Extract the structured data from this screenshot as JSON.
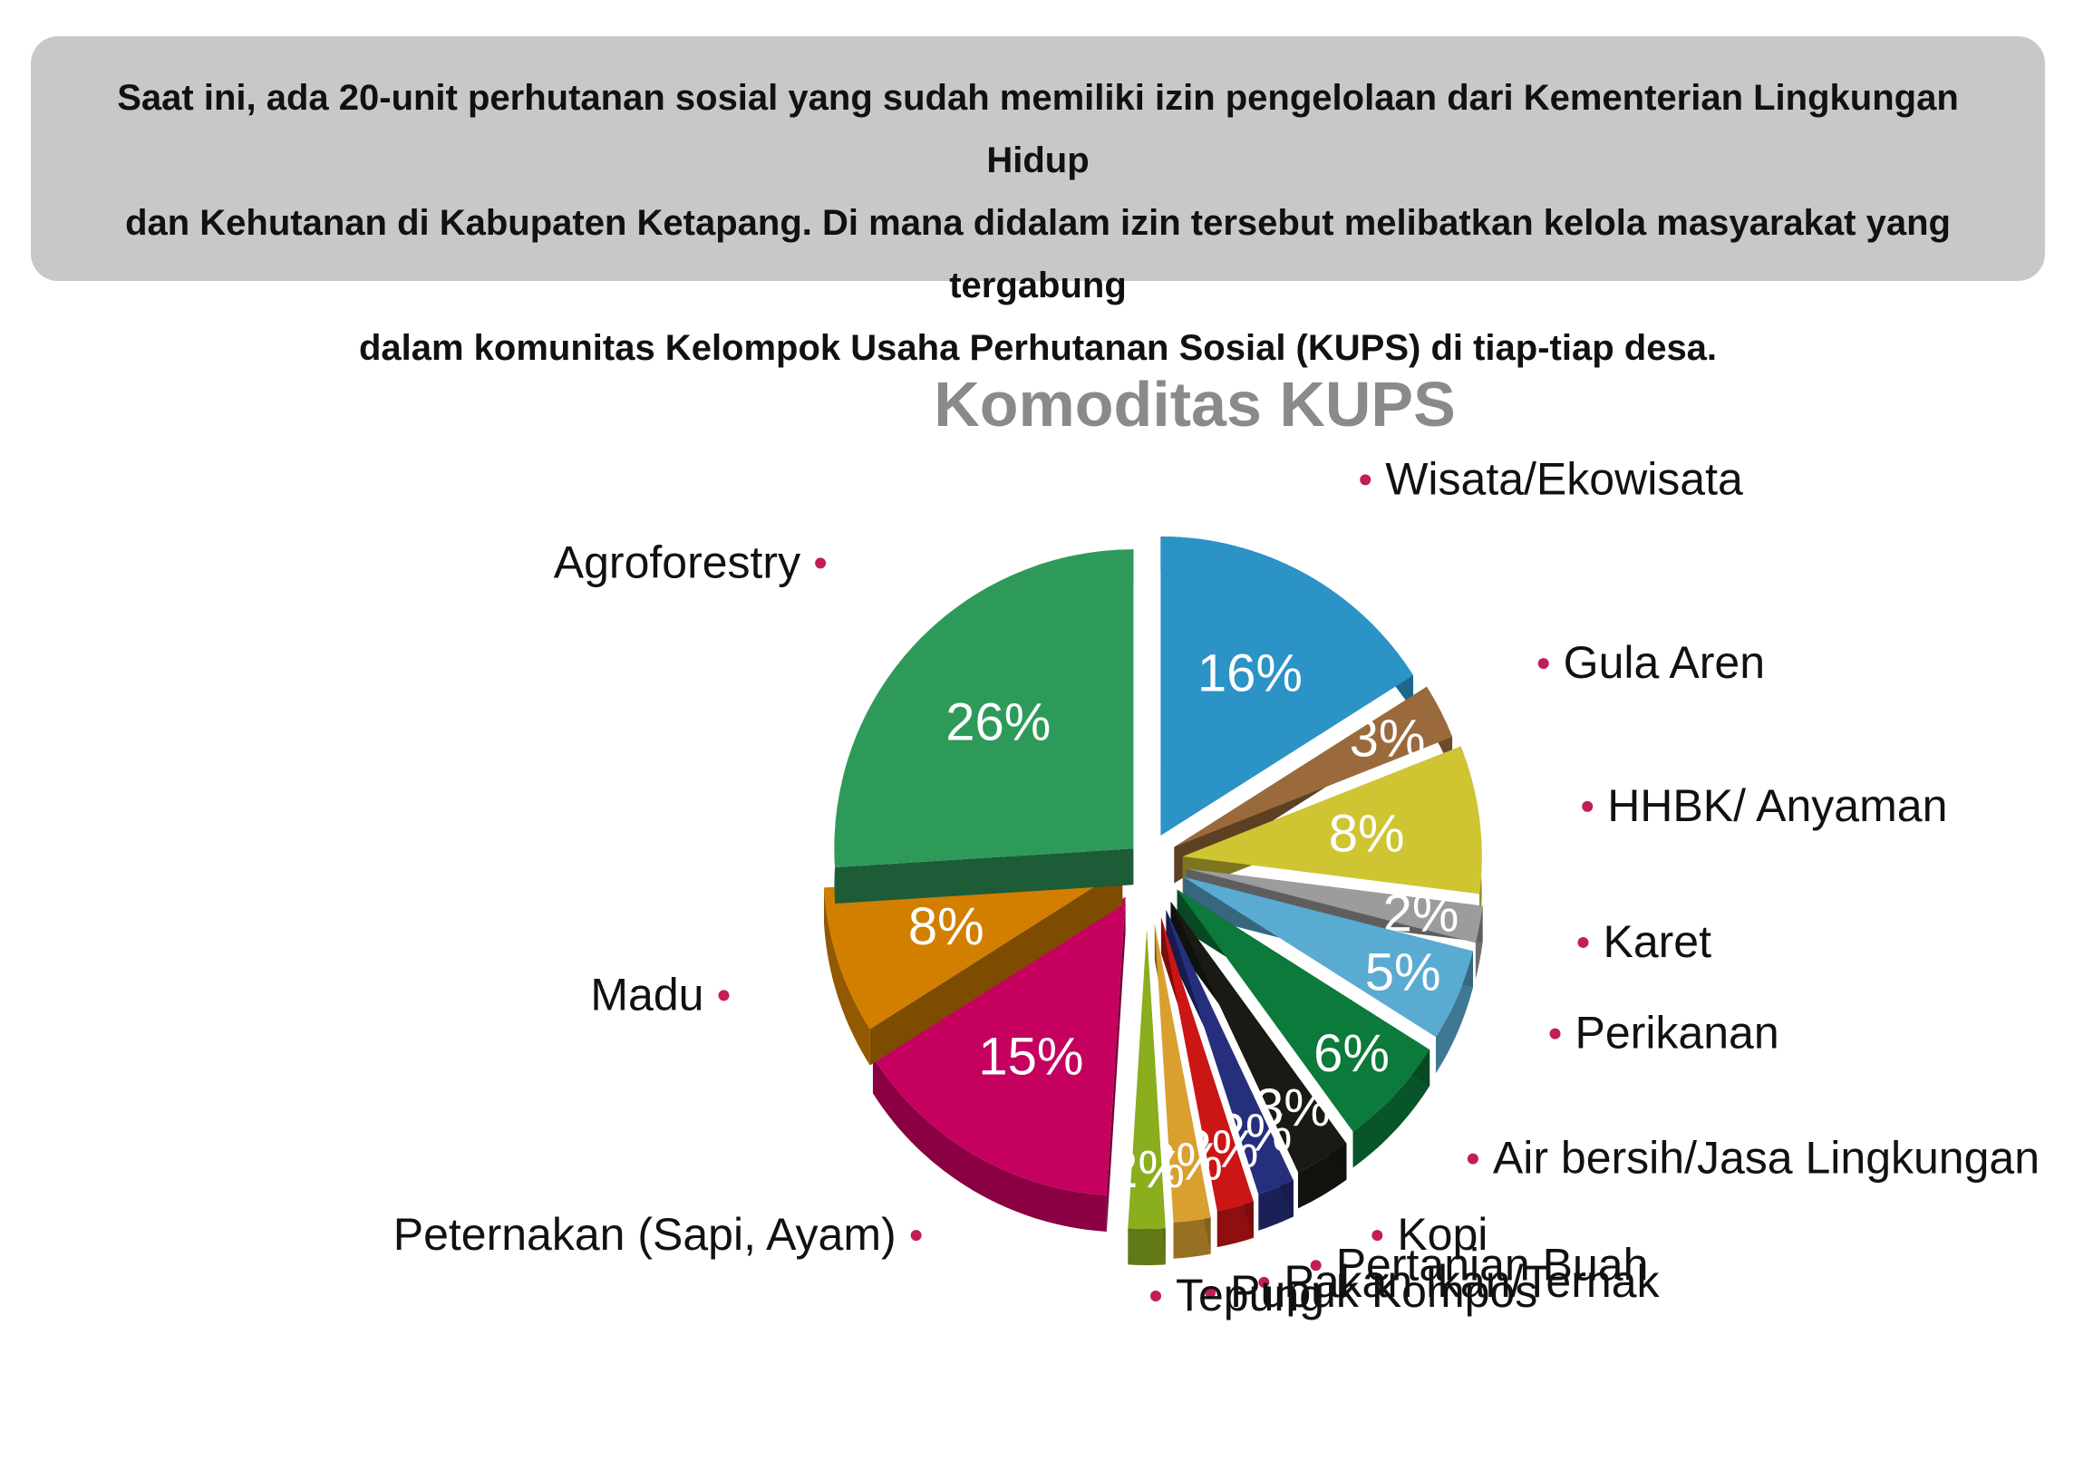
{
  "intro": {
    "lines": [
      "Saat ini, ada 20-unit perhutanan sosial yang sudah memiliki izin pengelolaan dari Kementerian Lingkungan Hidup",
      "dan Kehutanan di Kabupaten Ketapang. Di mana didalam izin tersebut melibatkan kelola masyarakat yang tergabung",
      "dalam komunitas Kelompok Usaha Perhutanan Sosial (KUPS) di tiap-tiap desa."
    ]
  },
  "chart_data": {
    "type": "pie",
    "title": "Komoditas KUPS",
    "unit": "%",
    "style": "exploded 3D pie",
    "legend_placement": "callout labels around the pie",
    "slices": [
      {
        "label": "Wisata/Ekowisata",
        "value": 16,
        "color": "#2b93c6"
      },
      {
        "label": "Gula Aren",
        "value": 3,
        "color": "#9a6a3c"
      },
      {
        "label": "HHBK/ Anyaman",
        "value": 8,
        "color": "#cfc533"
      },
      {
        "label": "Karet",
        "value": 2,
        "color": "#9c9c9c"
      },
      {
        "label": "Perikanan",
        "value": 5,
        "color": "#5aabd2"
      },
      {
        "label": "Air bersih/Jasa Lingkungan",
        "value": 6,
        "color": "#0c7a3a"
      },
      {
        "label": "Kopi",
        "value": 3,
        "color": "#1a1a14"
      },
      {
        "label": "Pertanian Buah",
        "value": 2,
        "color": "#262f7e"
      },
      {
        "label": "Pakan Ikan/Ternak",
        "value": 2,
        "color": "#cc1515"
      },
      {
        "label": "Pupuk Kompos",
        "value": 2,
        "color": "#d9a030"
      },
      {
        "label": "Tepung",
        "value": 2,
        "color": "#8aae1e"
      },
      {
        "label": "Peternakan (Sapi, Ayam)",
        "value": 15,
        "color": "#c5005e"
      },
      {
        "label": "Madu",
        "value": 8,
        "color": "#d27f00"
      },
      {
        "label": "Agroforestry",
        "value": 26,
        "color": "#2e9a5a"
      }
    ]
  },
  "colors": {
    "label_bullet": "#c21c5b",
    "intro_background": "#c8c8c8",
    "title": "#8a8a8a"
  }
}
